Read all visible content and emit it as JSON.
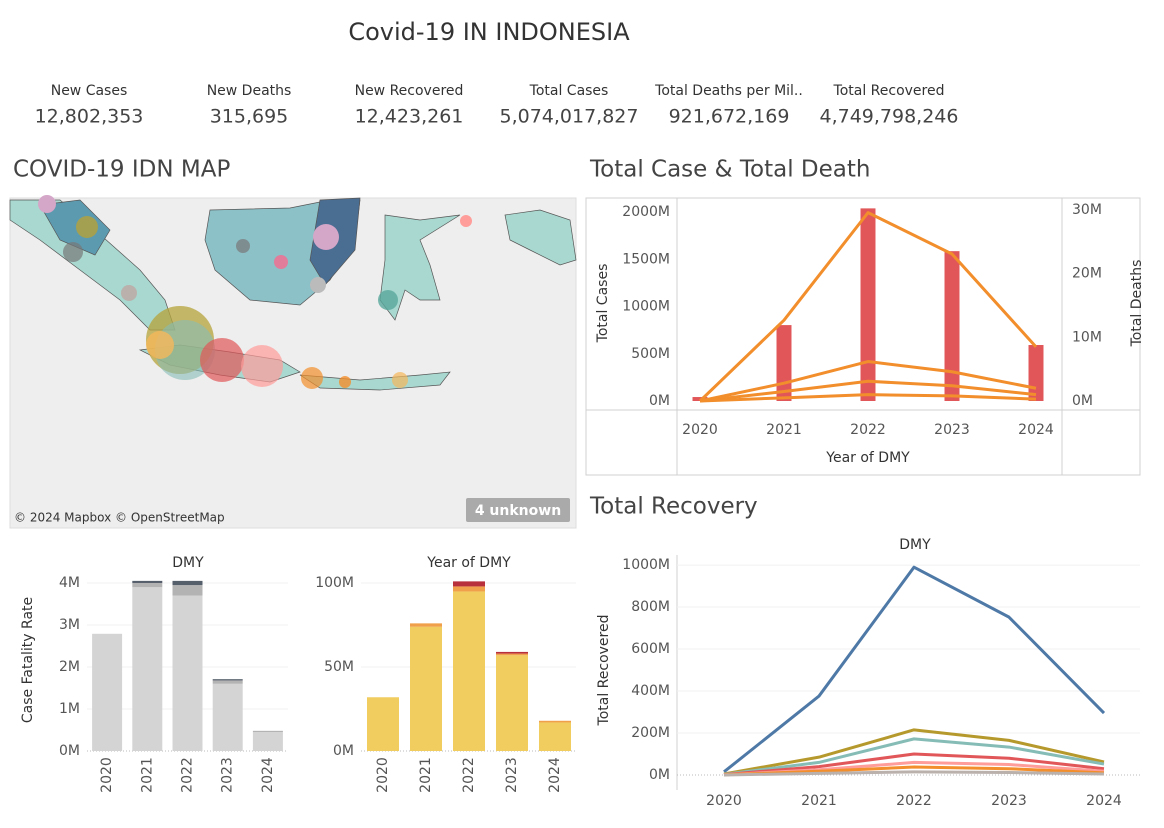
{
  "title": "Covid-19 IN INDONESIA",
  "kpis": [
    {
      "label": "New Cases",
      "value": "12,802,353"
    },
    {
      "label": "New Deaths",
      "value": "315,695"
    },
    {
      "label": "New Recovered",
      "value": "12,423,261"
    },
    {
      "label": "Total Cases",
      "value": "5,074,017,827"
    },
    {
      "label": "Total Deaths per Mil..",
      "value": "921,672,169"
    },
    {
      "label": "Total Recovered",
      "value": "4,749,798,246"
    }
  ],
  "map": {
    "title": "COVID-19 IDN MAP",
    "attribution": "© 2024 Mapbox © OpenStreetMap",
    "badge": "4 unknown"
  },
  "chart_data": [
    {
      "type": "bar",
      "title": "Total Case & Total Death",
      "x_label": "Year of DMY",
      "y_label": "Total Cases",
      "y2_label": "Total Deaths",
      "categories": [
        "2020",
        "2021",
        "2022",
        "2023",
        "2024"
      ],
      "ylim": [
        0,
        2150
      ],
      "yticks": [
        {
          "value": 0,
          "label": "0M"
        },
        {
          "value": 500,
          "label": "500M"
        },
        {
          "value": 1000,
          "label": "1000M"
        },
        {
          "value": 1500,
          "label": "1500M"
        },
        {
          "value": 2000,
          "label": "2000M"
        }
      ],
      "y2lim": [
        0,
        31.9
      ],
      "y2ticks": [
        {
          "value": 0,
          "label": "0M"
        },
        {
          "value": 10,
          "label": "10M"
        },
        {
          "value": 20,
          "label": "20M"
        },
        {
          "value": 30,
          "label": "30M"
        }
      ],
      "grid": false,
      "series": [
        {
          "color": "#e15759",
          "values": [
            42,
            804,
            2040,
            1587,
            593
          ]
        },
        {
          "color": "#f28e2b",
          "axis": "y2",
          "values": [
            0,
            12.7,
            29.6,
            23.1,
            8.5
          ]
        },
        {
          "color": "#f28e2b",
          "axis": "y2",
          "values": [
            0,
            2.8,
            6.2,
            4.6,
            2
          ]
        },
        {
          "color": "#f28e2b",
          "axis": "y2",
          "values": [
            0,
            1.5,
            3.1,
            2.4,
            1
          ]
        },
        {
          "color": "#f28e2b",
          "axis": "y2",
          "values": [
            0,
            0.5,
            1,
            0.8,
            0.3
          ]
        }
      ]
    },
    {
      "type": "line",
      "title": "Total Recovery",
      "subtitle": "DMY",
      "y_label": "Total Recovered",
      "categories": [
        "2020",
        "2021",
        "2022",
        "2023",
        "2024"
      ],
      "ylim": [
        0,
        1048
      ],
      "yticks": [
        {
          "value": 0,
          "label": "0M"
        },
        {
          "value": 200,
          "label": "200M"
        },
        {
          "value": 400,
          "label": "400M"
        },
        {
          "value": 600,
          "label": "600M"
        },
        {
          "value": 800,
          "label": "800M"
        },
        {
          "value": 1000,
          "label": "1000M"
        }
      ],
      "grid": true,
      "series": [
        {
          "color": "#4e79a7",
          "values": [
            15,
            376,
            990,
            752,
            295
          ]
        },
        {
          "color": "#b6992d",
          "values": [
            5,
            85,
            215,
            165,
            62
          ]
        },
        {
          "color": "#86bcb6",
          "values": [
            3,
            60,
            172,
            133,
            52
          ]
        },
        {
          "color": "#e15759",
          "values": [
            2,
            40,
            100,
            80,
            30
          ]
        },
        {
          "color": "#ff9d9a",
          "values": [
            1,
            25,
            60,
            50,
            18
          ]
        },
        {
          "color": "#f28e2b",
          "values": [
            1,
            18,
            38,
            30,
            10
          ]
        },
        {
          "color": "#bab0ac",
          "values": [
            0,
            8,
            15,
            12,
            5
          ]
        }
      ]
    },
    {
      "type": "stacked_bar",
      "subtitle": "DMY",
      "y_label": "Case Fatality Rate",
      "categories": [
        "2020",
        "2021",
        "2022",
        "2023",
        "2024"
      ],
      "ylim": [
        0,
        4.19
      ],
      "yticks": [
        {
          "value": 0,
          "label": "0M"
        },
        {
          "value": 1,
          "label": "1M"
        },
        {
          "value": 2,
          "label": "2M"
        },
        {
          "value": 3,
          "label": "3M"
        },
        {
          "value": 4,
          "label": "4M"
        }
      ],
      "grid": true,
      "series": [
        {
          "color": "#d4d4d4",
          "values": [
            2.79,
            3.9,
            3.7,
            1.6,
            0.45
          ]
        },
        {
          "color": "#b3b3b3",
          "values": [
            0,
            0.1,
            0.25,
            0.08,
            0.03
          ]
        },
        {
          "color": "#555e6b",
          "values": [
            0,
            0.05,
            0.1,
            0.03,
            0
          ]
        }
      ]
    },
    {
      "type": "stacked_bar",
      "subtitle": "Year of DMY",
      "categories": [
        "2020",
        "2021",
        "2022",
        "2023",
        "2024"
      ],
      "ylim": [
        0,
        104.8
      ],
      "yticks": [
        {
          "value": 0,
          "label": "0M"
        },
        {
          "value": 50,
          "label": "50M"
        },
        {
          "value": 100,
          "label": "100M"
        }
      ],
      "grid": true,
      "series": [
        {
          "color": "#f1cd5f",
          "values": [
            32,
            74,
            95,
            57,
            17
          ]
        },
        {
          "color": "#f0a04b",
          "values": [
            0,
            2,
            3,
            1,
            1
          ]
        },
        {
          "color": "#b8303c",
          "values": [
            0,
            0,
            3,
            1,
            0
          ]
        }
      ]
    }
  ]
}
